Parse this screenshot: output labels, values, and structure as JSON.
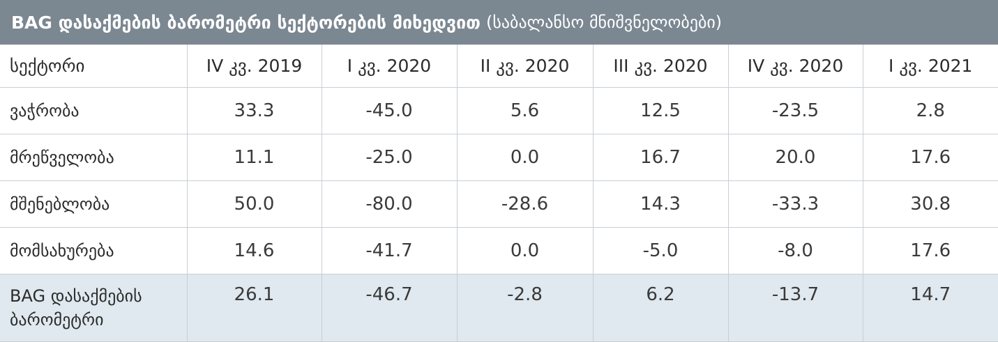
{
  "title": {
    "bold": "BAG დასაქმების ბარომეტრი სექტორების მიხედვით",
    "regular": "(საბალანსო მნიშვნელობები)"
  },
  "chart_data": {
    "type": "table",
    "title": "BAG დასაქმების ბარომეტრი სექტორების მიხედვით (საბალანსო მნიშვნელობები)",
    "row_header": "სექტორი",
    "columns": [
      "IV კვ. 2019",
      "I კვ. 2020",
      "II კვ. 2020",
      "III კვ. 2020",
      "IV კვ. 2020",
      "I კვ. 2021"
    ],
    "rows": [
      {
        "label": "ვაჭრობა",
        "values": [
          "33.3",
          "-45.0",
          "5.6",
          "12.5",
          "-23.5",
          "2.8"
        ]
      },
      {
        "label": "მრეწველობა",
        "values": [
          "11.1",
          "-25.0",
          "0.0",
          "16.7",
          "20.0",
          "17.6"
        ]
      },
      {
        "label": "მშენებლობა",
        "values": [
          "50.0",
          "-80.0",
          "-28.6",
          "14.3",
          "-33.3",
          "30.8"
        ]
      },
      {
        "label": "მომსახურება",
        "values": [
          "14.6",
          "-41.7",
          "0.0",
          "-5.0",
          "-8.0",
          "17.6"
        ]
      },
      {
        "label": "BAG დასაქმების ბარომეტრი",
        "values": [
          "26.1",
          "-46.7",
          "-2.8",
          "6.2",
          "-13.7",
          "14.7"
        ]
      }
    ]
  },
  "colors": {
    "header_bg": "#7b8791",
    "summary_row_bg": "#dfe9ef",
    "grid_line": "#c9cfd4"
  }
}
